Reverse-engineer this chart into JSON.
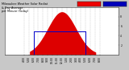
{
  "title": "Milwaukee Weather Solar Radiation & Day Average per Minute (Today)",
  "bg_color": "#c8c8c8",
  "plot_bg_color": "#ffffff",
  "bar_color": "#dd0000",
  "line_color": "#0000cc",
  "legend_red": "#ee0000",
  "legend_blue": "#0000bb",
  "num_points": 1440,
  "peak_minute": 720,
  "peak_value": 900,
  "sigma": 180,
  "daylight_start": 310,
  "daylight_end": 1150,
  "avg_start_minute": 360,
  "avg_end_minute": 1020,
  "avg_value": 480,
  "ylim": [
    0,
    1000
  ],
  "xlim": [
    0,
    1440
  ],
  "xtick_positions": [
    240,
    300,
    360,
    420,
    480,
    540,
    600,
    660,
    720,
    780,
    840,
    900,
    960,
    1020,
    1080,
    1140,
    1200
  ],
  "xtick_labels": [
    "4:00",
    "5:00",
    "6:00",
    "7:00",
    "8:00",
    "9:00",
    "10:00",
    "11:00",
    "12:00",
    "1:00",
    "2:00",
    "3:00",
    "4:00",
    "5:00",
    "6:00",
    "7:00",
    "8:00"
  ],
  "ytick_values": [
    200,
    400,
    600,
    800
  ],
  "ytick_labels": [
    "2",
    "4",
    "6",
    "8"
  ],
  "grid_color": "#aaaaaa",
  "title_fontsize": 2.5,
  "tick_fontsize": 2.2
}
